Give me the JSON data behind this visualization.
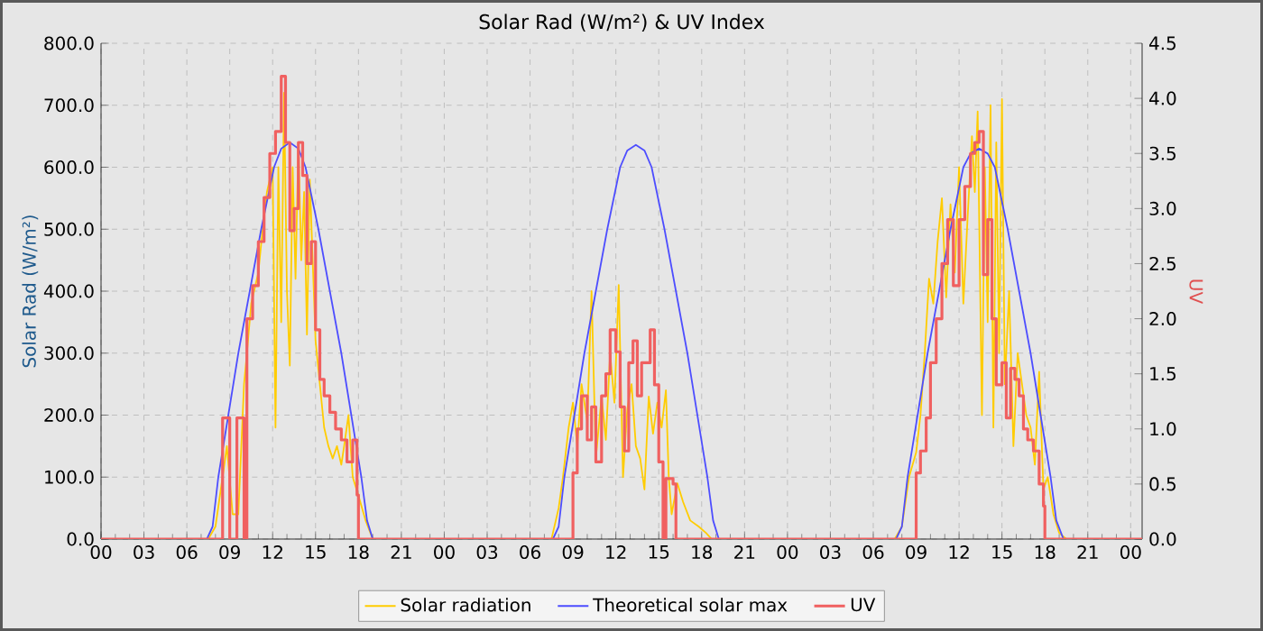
{
  "chart_data": {
    "type": "line",
    "title": "Solar Rad (W/m²) &  UV Index",
    "ylabel": "Solar Rad (W/m²)",
    "y2label": "UV",
    "xlim": [
      0,
      72.8
    ],
    "ylim": [
      0,
      800
    ],
    "y2lim": [
      0,
      4.5
    ],
    "grid": true,
    "legend": "bottom",
    "xticks": [
      {
        "value": 0,
        "label": "00"
      },
      {
        "value": 3,
        "label": "03"
      },
      {
        "value": 6,
        "label": "06"
      },
      {
        "value": 9,
        "label": "09"
      },
      {
        "value": 12,
        "label": "12"
      },
      {
        "value": 15,
        "label": "15"
      },
      {
        "value": 18,
        "label": "18"
      },
      {
        "value": 21,
        "label": "21"
      },
      {
        "value": 24,
        "label": "00"
      },
      {
        "value": 27,
        "label": "03"
      },
      {
        "value": 30,
        "label": "06"
      },
      {
        "value": 33,
        "label": "09"
      },
      {
        "value": 36,
        "label": "12"
      },
      {
        "value": 39,
        "label": "15"
      },
      {
        "value": 42,
        "label": "18"
      },
      {
        "value": 45,
        "label": "21"
      },
      {
        "value": 48,
        "label": "00"
      },
      {
        "value": 51,
        "label": "03"
      },
      {
        "value": 54,
        "label": "06"
      },
      {
        "value": 57,
        "label": "09"
      },
      {
        "value": 60,
        "label": "12"
      },
      {
        "value": 63,
        "label": "15"
      },
      {
        "value": 66,
        "label": "18"
      },
      {
        "value": 69,
        "label": "21"
      },
      {
        "value": 72,
        "label": "00"
      }
    ],
    "yticks": [
      {
        "value": 0,
        "label": "0.0"
      },
      {
        "value": 100,
        "label": "100.0"
      },
      {
        "value": 200,
        "label": "200.0"
      },
      {
        "value": 300,
        "label": "300.0"
      },
      {
        "value": 400,
        "label": "400.0"
      },
      {
        "value": 500,
        "label": "500.0"
      },
      {
        "value": 600,
        "label": "600.0"
      },
      {
        "value": 700,
        "label": "700.0"
      },
      {
        "value": 800,
        "label": "800.0"
      }
    ],
    "y2ticks": [
      {
        "value": 0,
        "label": "0.0"
      },
      {
        "value": 0.5,
        "label": "0.5"
      },
      {
        "value": 1,
        "label": "1.0"
      },
      {
        "value": 1.5,
        "label": "1.5"
      },
      {
        "value": 2,
        "label": "2.0"
      },
      {
        "value": 2.5,
        "label": "2.5"
      },
      {
        "value": 3,
        "label": "3.0"
      },
      {
        "value": 3.5,
        "label": "3.5"
      },
      {
        "value": 4,
        "label": "4.0"
      },
      {
        "value": 4.5,
        "label": "4.5"
      }
    ],
    "series": [
      {
        "name": "Solar radiation",
        "color": "#ffcc00",
        "x": [
          0,
          7.5,
          8.0,
          8.5,
          8.8,
          9.2,
          9.6,
          10.0,
          10.2,
          10.5,
          11.0,
          11.3,
          11.6,
          12.0,
          12.2,
          12.4,
          12.6,
          12.8,
          13.0,
          13.2,
          13.4,
          13.6,
          13.8,
          14.0,
          14.2,
          14.4,
          14.6,
          14.8,
          15.0,
          15.3,
          15.6,
          15.9,
          16.2,
          16.5,
          16.8,
          17.0,
          17.3,
          17.6,
          18.0,
          18.5,
          19.0,
          31.5,
          32.0,
          32.3,
          32.7,
          33.0,
          33.3,
          33.6,
          34.0,
          34.3,
          34.6,
          35.0,
          35.3,
          35.6,
          35.9,
          36.2,
          36.5,
          36.8,
          37.1,
          37.4,
          37.7,
          38.0,
          38.3,
          38.6,
          38.9,
          39.2,
          39.5,
          39.7,
          39.9,
          40.3,
          40.7,
          41.2,
          41.8,
          42.3,
          42.7,
          55.5,
          56.0,
          56.5,
          57.0,
          57.3,
          57.6,
          57.9,
          58.2,
          58.5,
          58.8,
          59.1,
          59.4,
          59.7,
          60.0,
          60.3,
          60.6,
          60.9,
          61.1,
          61.3,
          61.6,
          61.8,
          62.0,
          62.2,
          62.4,
          62.6,
          62.8,
          63.0,
          63.2,
          63.5,
          63.8,
          64.1,
          64.4,
          64.7,
          65.0,
          65.3,
          65.6,
          65.9,
          66.2,
          66.6,
          67.0,
          67.5,
          72.8
        ],
        "values": [
          0,
          0,
          20,
          100,
          150,
          40,
          40,
          250,
          300,
          380,
          430,
          500,
          560,
          600,
          180,
          600,
          350,
          720,
          400,
          280,
          600,
          420,
          640,
          450,
          560,
          330,
          580,
          450,
          320,
          250,
          180,
          150,
          130,
          150,
          120,
          150,
          200,
          100,
          70,
          30,
          0,
          0,
          50,
          100,
          180,
          220,
          150,
          250,
          190,
          400,
          130,
          230,
          160,
          300,
          220,
          410,
          100,
          210,
          250,
          150,
          130,
          80,
          230,
          170,
          220,
          180,
          240,
          100,
          40,
          90,
          60,
          30,
          20,
          10,
          0,
          0,
          20,
          100,
          140,
          200,
          300,
          420,
          380,
          480,
          550,
          390,
          540,
          430,
          600,
          380,
          520,
          650,
          560,
          690,
          200,
          600,
          350,
          700,
          180,
          640,
          300,
          710,
          250,
          400,
          150,
          300,
          250,
          200,
          180,
          120,
          270,
          80,
          100,
          40,
          10,
          0,
          0
        ]
      },
      {
        "name": "Theoretical solar max",
        "color": "#4d4dff",
        "x": [
          0,
          7.4,
          7.8,
          8.2,
          8.9,
          9.6,
          10.4,
          11.2,
          12.1,
          12.6,
          13.2,
          13.8,
          14.3,
          15.2,
          16.0,
          16.8,
          17.5,
          18.2,
          18.6,
          19.0,
          31.6,
          32.0,
          32.4,
          33.1,
          33.8,
          34.6,
          35.4,
          36.3,
          36.8,
          37.4,
          38.0,
          38.5,
          39.4,
          40.2,
          41.0,
          41.7,
          42.4,
          42.8,
          43.2,
          55.6,
          56.0,
          56.4,
          57.1,
          57.8,
          58.6,
          59.4,
          60.3,
          60.8,
          61.4,
          62.0,
          62.5,
          63.4,
          64.2,
          65.0,
          65.7,
          66.4,
          66.8,
          67.3,
          72.8
        ],
        "values": [
          0,
          0,
          20,
          100,
          200,
          300,
          400,
          500,
          600,
          630,
          640,
          630,
          600,
          500,
          400,
          300,
          200,
          100,
          30,
          0,
          0,
          20,
          100,
          200,
          300,
          400,
          500,
          600,
          627,
          636,
          627,
          600,
          500,
          400,
          300,
          200,
          100,
          30,
          0,
          0,
          20,
          100,
          200,
          300,
          400,
          500,
          600,
          622,
          630,
          622,
          600,
          500,
          400,
          300,
          200,
          100,
          30,
          0,
          0
        ]
      },
      {
        "name": "UV",
        "color": "#f06060",
        "type": "step",
        "axis": "y2",
        "x": [
          0,
          8.3,
          8.5,
          9.0,
          9.5,
          10.0,
          10.2,
          10.6,
          11.0,
          11.4,
          11.8,
          12.2,
          12.6,
          12.9,
          13.2,
          13.5,
          13.8,
          14.1,
          14.4,
          14.7,
          15.0,
          15.3,
          15.6,
          16.0,
          16.4,
          16.8,
          17.2,
          17.6,
          17.9,
          18.0,
          33.0,
          33.3,
          33.6,
          34.0,
          34.3,
          34.6,
          35.0,
          35.3,
          35.6,
          36.0,
          36.3,
          36.6,
          36.9,
          37.2,
          37.5,
          37.8,
          38.1,
          38.4,
          38.7,
          39.0,
          39.3,
          39.5,
          40.0,
          40.2,
          57.0,
          57.3,
          57.7,
          58.0,
          58.4,
          58.8,
          59.2,
          59.6,
          60.0,
          60.4,
          60.8,
          61.1,
          61.4,
          61.7,
          62.0,
          62.3,
          62.6,
          63.0,
          63.3,
          63.6,
          63.9,
          64.2,
          64.5,
          64.8,
          65.2,
          65.6,
          65.9,
          66.0,
          72.8
        ],
        "values": [
          0,
          0,
          1.1,
          0,
          1.1,
          0,
          2.0,
          2.3,
          2.7,
          3.1,
          3.5,
          3.7,
          4.2,
          3.6,
          2.8,
          3.0,
          3.6,
          3.3,
          2.5,
          2.7,
          1.9,
          1.45,
          1.3,
          1.15,
          1.0,
          0.9,
          0.7,
          0.9,
          0.4,
          0,
          0.6,
          1.0,
          1.3,
          0.9,
          1.2,
          0.7,
          1.3,
          1.5,
          1.9,
          1.7,
          1.2,
          0.8,
          1.6,
          1.8,
          1.3,
          1.6,
          1.6,
          1.9,
          1.4,
          0.7,
          0,
          0.55,
          0.5,
          0,
          0.6,
          0.8,
          1.1,
          1.6,
          2.0,
          2.5,
          2.9,
          2.3,
          2.9,
          3.2,
          3.5,
          3.6,
          3.7,
          2.4,
          2.9,
          2.0,
          1.4,
          1.6,
          1.1,
          1.55,
          1.45,
          1.3,
          1.0,
          0.9,
          0.8,
          0.5,
          0.3,
          0,
          0
        ]
      }
    ]
  }
}
